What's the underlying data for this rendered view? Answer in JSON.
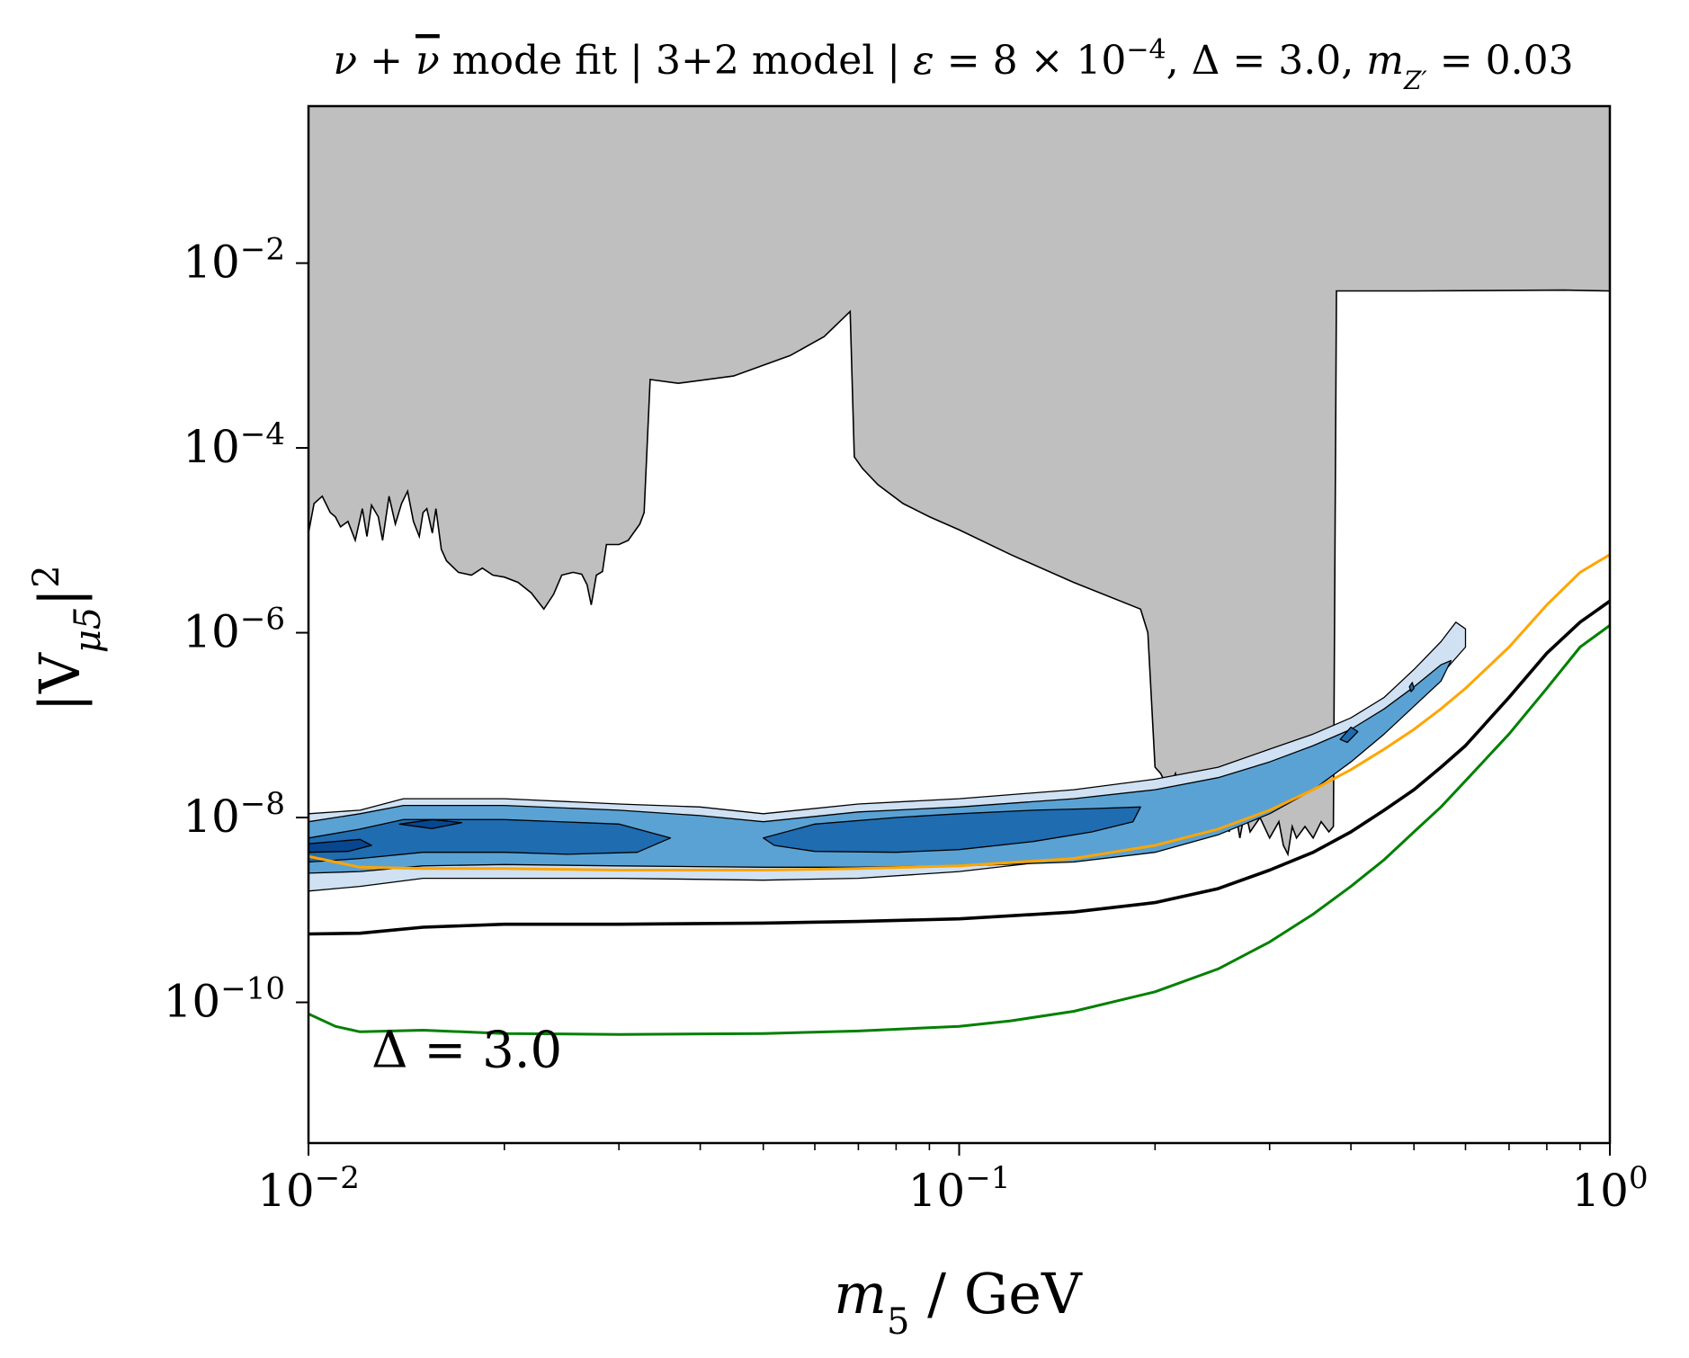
{
  "chart_data": {
    "type": "area",
    "title_parts": {
      "nu": "ν",
      "plus": " + ",
      "nubar": "ν",
      "mode": " mode fit | 3+2 model | ",
      "eps": "ε",
      "eps_val": " = 8 × 10",
      "eps_exp": "−4",
      "delta": ", Δ = 3.0, ",
      "m": "m",
      "m_sub": "Z′",
      "m_val": " = 0.03"
    },
    "xlabel": {
      "m": "m",
      "sub": "5",
      "rest": " / GeV"
    },
    "ylabel": {
      "open": "|V",
      "sub": "μ5",
      "close": "|",
      "sup": "2"
    },
    "xscale": "log",
    "yscale": "log",
    "xlim": [
      0.01,
      1.0
    ],
    "ylim": [
      3e-12,
      0.5
    ],
    "x_ticks": [
      {
        "value": 0.01,
        "base": "10",
        "exp": "−2"
      },
      {
        "value": 0.1,
        "base": "10",
        "exp": "−1"
      },
      {
        "value": 1.0,
        "base": "10",
        "exp": "0"
      }
    ],
    "y_ticks": [
      {
        "value": 1e-10,
        "base": "10",
        "exp": "−10"
      },
      {
        "value": 1e-08,
        "base": "10",
        "exp": "−8"
      },
      {
        "value": 1e-06,
        "base": "10",
        "exp": "−6"
      },
      {
        "value": 0.0001,
        "base": "10",
        "exp": "−4"
      },
      {
        "value": 0.01,
        "base": "10",
        "exp": "−2"
      }
    ],
    "annotation": {
      "text": "Δ = 3.0",
      "x": 0.0125,
      "y": 2e-11
    },
    "colors": {
      "excluded_fill": "#bfbfbf",
      "orange": "#ffa500",
      "black": "#000000",
      "green": "#008000",
      "contour_light": "#cfe1f2",
      "contour_mid": "#5aa2d4",
      "contour_dark": "#1f6cb0",
      "contour_darkest": "#08468f"
    },
    "excluded_region_boundary": [
      [
        0.01,
        1.2e-05
      ],
      [
        0.0102,
        2.5e-05
      ],
      [
        0.0105,
        3e-05
      ],
      [
        0.0108,
        2e-05
      ],
      [
        0.011,
        1.8e-05
      ],
      [
        0.0112,
        1.4e-05
      ],
      [
        0.0115,
        1.6e-05
      ],
      [
        0.0118,
        1e-05
      ],
      [
        0.0121,
        2.2e-05
      ],
      [
        0.0123,
        1.1e-05
      ],
      [
        0.0125,
        2.4e-05
      ],
      [
        0.0128,
        1.8e-05
      ],
      [
        0.013,
        1e-05
      ],
      [
        0.0133,
        3e-05
      ],
      [
        0.0136,
        1.5e-05
      ],
      [
        0.0139,
        2.5e-05
      ],
      [
        0.0142,
        3.4e-05
      ],
      [
        0.0145,
        1.6e-05
      ],
      [
        0.0148,
        1.1e-05
      ],
      [
        0.015,
        2e-05
      ],
      [
        0.0152,
        2.2e-05
      ],
      [
        0.0155,
        1.2e-05
      ],
      [
        0.0157,
        2.2e-05
      ],
      [
        0.016,
        8e-06
      ],
      [
        0.0163,
        6e-06
      ],
      [
        0.017,
        4.5e-06
      ],
      [
        0.0178,
        4.2e-06
      ],
      [
        0.0185,
        5e-06
      ],
      [
        0.0192,
        4.2e-06
      ],
      [
        0.02,
        4e-06
      ],
      [
        0.021,
        3.5e-06
      ],
      [
        0.022,
        2.7e-06
      ],
      [
        0.023,
        1.8e-06
      ],
      [
        0.0238,
        2.6e-06
      ],
      [
        0.0245,
        4.2e-06
      ],
      [
        0.0255,
        4.5e-06
      ],
      [
        0.0263,
        4.3e-06
      ],
      [
        0.0268,
        3.3e-06
      ],
      [
        0.0272,
        2e-06
      ],
      [
        0.0277,
        4.2e-06
      ],
      [
        0.0283,
        4.6e-06
      ],
      [
        0.0287,
        9e-06
      ],
      [
        0.03,
        9e-06
      ],
      [
        0.031,
        1e-05
      ],
      [
        0.0323,
        1.5e-05
      ],
      [
        0.0328,
        2e-05
      ],
      [
        0.0335,
        0.00055
      ],
      [
        0.037,
        0.0005
      ],
      [
        0.045,
        0.0006
      ],
      [
        0.055,
        0.001
      ],
      [
        0.062,
        0.0016
      ],
      [
        0.068,
        0.003
      ],
      [
        0.069,
        8e-05
      ],
      [
        0.071,
        6e-05
      ],
      [
        0.075,
        4e-05
      ],
      [
        0.082,
        2.5e-05
      ],
      [
        0.09,
        1.8e-05
      ],
      [
        0.1,
        1.3e-05
      ],
      [
        0.12,
        7e-06
      ],
      [
        0.15,
        3.5e-06
      ],
      [
        0.19,
        1.8e-06
      ],
      [
        0.195,
        1e-06
      ],
      [
        0.2,
        3.5e-08
      ],
      [
        0.204,
        3e-08
      ],
      [
        0.21,
        2e-08
      ],
      [
        0.215,
        3e-08
      ],
      [
        0.22,
        1.5e-08
      ],
      [
        0.225,
        2.5e-08
      ],
      [
        0.23,
        1e-08
      ],
      [
        0.235,
        2e-08
      ],
      [
        0.24,
        6e-09
      ],
      [
        0.245,
        2e-08
      ],
      [
        0.25,
        8e-09
      ],
      [
        0.255,
        1.5e-08
      ],
      [
        0.26,
        7e-09
      ],
      [
        0.265,
        1.3e-08
      ],
      [
        0.27,
        6e-09
      ],
      [
        0.275,
        1.2e-08
      ],
      [
        0.28,
        7e-09
      ],
      [
        0.29,
        1e-08
      ],
      [
        0.3,
        6e-09
      ],
      [
        0.31,
        9e-09
      ],
      [
        0.315,
        5e-09
      ],
      [
        0.32,
        4e-09
      ],
      [
        0.325,
        8e-09
      ],
      [
        0.33,
        6e-09
      ],
      [
        0.34,
        8e-09
      ],
      [
        0.35,
        6e-09
      ],
      [
        0.36,
        9e-09
      ],
      [
        0.37,
        7e-09
      ],
      [
        0.376,
        8e-09
      ],
      [
        0.38,
        0.005
      ],
      [
        0.5,
        0.005
      ],
      [
        0.85,
        0.0051
      ],
      [
        1.0,
        0.005
      ]
    ],
    "series": [
      {
        "color_key": "orange",
        "points": [
          [
            0.01,
            3.8e-09
          ],
          [
            0.012,
            2.9e-09
          ],
          [
            0.015,
            2.8e-09
          ],
          [
            0.02,
            2.8e-09
          ],
          [
            0.03,
            2.7e-09
          ],
          [
            0.05,
            2.7e-09
          ],
          [
            0.07,
            2.8e-09
          ],
          [
            0.1,
            3e-09
          ],
          [
            0.15,
            3.6e-09
          ],
          [
            0.2,
            5e-09
          ],
          [
            0.25,
            7.5e-09
          ],
          [
            0.3,
            1.2e-08
          ],
          [
            0.35,
            2e-08
          ],
          [
            0.4,
            3.3e-08
          ],
          [
            0.45,
            5.5e-08
          ],
          [
            0.5,
            9e-08
          ],
          [
            0.55,
            1.5e-07
          ],
          [
            0.6,
            2.5e-07
          ],
          [
            0.7,
            7e-07
          ],
          [
            0.8,
            2e-06
          ],
          [
            0.9,
            4.5e-06
          ],
          [
            1.0,
            7e-06
          ]
        ]
      },
      {
        "color_key": "black",
        "points": [
          [
            0.01,
            5.5e-10
          ],
          [
            0.012,
            5.6e-10
          ],
          [
            0.015,
            6.5e-10
          ],
          [
            0.02,
            7e-10
          ],
          [
            0.03,
            7e-10
          ],
          [
            0.05,
            7.2e-10
          ],
          [
            0.07,
            7.5e-10
          ],
          [
            0.1,
            8e-10
          ],
          [
            0.15,
            9.5e-10
          ],
          [
            0.2,
            1.2e-09
          ],
          [
            0.25,
            1.7e-09
          ],
          [
            0.3,
            2.7e-09
          ],
          [
            0.35,
            4.2e-09
          ],
          [
            0.4,
            7e-09
          ],
          [
            0.45,
            1.2e-08
          ],
          [
            0.5,
            2e-08
          ],
          [
            0.55,
            3.5e-08
          ],
          [
            0.6,
            6e-08
          ],
          [
            0.7,
            2e-07
          ],
          [
            0.8,
            6e-07
          ],
          [
            0.9,
            1.3e-06
          ],
          [
            1.0,
            2.2e-06
          ]
        ]
      },
      {
        "color_key": "green",
        "points": [
          [
            0.01,
            7.5e-11
          ],
          [
            0.011,
            5.5e-11
          ],
          [
            0.012,
            4.8e-11
          ],
          [
            0.015,
            5e-11
          ],
          [
            0.02,
            4.6e-11
          ],
          [
            0.03,
            4.5e-11
          ],
          [
            0.05,
            4.6e-11
          ],
          [
            0.07,
            4.9e-11
          ],
          [
            0.1,
            5.5e-11
          ],
          [
            0.12,
            6.3e-11
          ],
          [
            0.15,
            8e-11
          ],
          [
            0.2,
            1.3e-10
          ],
          [
            0.25,
            2.3e-10
          ],
          [
            0.3,
            4.5e-10
          ],
          [
            0.35,
            9e-10
          ],
          [
            0.4,
            1.8e-09
          ],
          [
            0.45,
            3.5e-09
          ],
          [
            0.5,
            7e-09
          ],
          [
            0.55,
            1.3e-08
          ],
          [
            0.6,
            2.5e-08
          ],
          [
            0.7,
            8e-08
          ],
          [
            0.8,
            2.5e-07
          ],
          [
            0.9,
            7e-07
          ],
          [
            1.0,
            1.2e-06
          ]
        ]
      }
    ],
    "contours": [
      {
        "level": 1,
        "color_key": "contour_light",
        "points": [
          [
            0.01,
            1.1e-08
          ],
          [
            0.012,
            1.2e-08
          ],
          [
            0.014,
            1.6e-08
          ],
          [
            0.02,
            1.6e-08
          ],
          [
            0.03,
            1.4e-08
          ],
          [
            0.04,
            1.3e-08
          ],
          [
            0.05,
            1.1e-08
          ],
          [
            0.07,
            1.4e-08
          ],
          [
            0.1,
            1.6e-08
          ],
          [
            0.15,
            2e-08
          ],
          [
            0.2,
            2.6e-08
          ],
          [
            0.25,
            3.5e-08
          ],
          [
            0.3,
            5.5e-08
          ],
          [
            0.35,
            8e-08
          ],
          [
            0.4,
            1.2e-07
          ],
          [
            0.45,
            2e-07
          ],
          [
            0.5,
            4e-07
          ],
          [
            0.55,
            8e-07
          ],
          [
            0.58,
            1.3e-06
          ],
          [
            0.6,
            1.1e-06
          ],
          [
            0.6,
            7e-07
          ],
          [
            0.55,
            3.5e-07
          ],
          [
            0.5,
            1.7e-07
          ],
          [
            0.45,
            9e-08
          ],
          [
            0.4,
            4.5e-08
          ],
          [
            0.35,
            2.4e-08
          ],
          [
            0.3,
            1.3e-08
          ],
          [
            0.25,
            7.5e-09
          ],
          [
            0.2,
            4.8e-09
          ],
          [
            0.15,
            3.6e-09
          ],
          [
            0.1,
            2.6e-09
          ],
          [
            0.07,
            2.2e-09
          ],
          [
            0.05,
            2.1e-09
          ],
          [
            0.03,
            2.2e-09
          ],
          [
            0.02,
            2.2e-09
          ],
          [
            0.015,
            2.2e-09
          ],
          [
            0.012,
            1.8e-09
          ],
          [
            0.01,
            1.6e-09
          ]
        ]
      },
      {
        "level": 2,
        "color_key": "contour_mid",
        "points": [
          [
            0.01,
            9e-09
          ],
          [
            0.012,
            1.1e-08
          ],
          [
            0.014,
            1.35e-08
          ],
          [
            0.02,
            1.35e-08
          ],
          [
            0.03,
            1.2e-08
          ],
          [
            0.04,
            1.05e-08
          ],
          [
            0.05,
            9e-09
          ],
          [
            0.07,
            1.15e-08
          ],
          [
            0.1,
            1.3e-08
          ],
          [
            0.15,
            1.6e-08
          ],
          [
            0.2,
            2e-08
          ],
          [
            0.25,
            2.7e-08
          ],
          [
            0.3,
            4e-08
          ],
          [
            0.35,
            6e-08
          ],
          [
            0.4,
            9e-08
          ],
          [
            0.45,
            1.5e-07
          ],
          [
            0.5,
            2.6e-07
          ],
          [
            0.55,
            4.5e-07
          ],
          [
            0.57,
            5e-07
          ],
          [
            0.55,
            3e-07
          ],
          [
            0.5,
            1.6e-07
          ],
          [
            0.45,
            8e-08
          ],
          [
            0.4,
            4e-08
          ],
          [
            0.35,
            2e-08
          ],
          [
            0.3,
            1.1e-08
          ],
          [
            0.25,
            6.5e-09
          ],
          [
            0.2,
            4.2e-09
          ],
          [
            0.15,
            3.3e-09
          ],
          [
            0.1,
            3e-09
          ],
          [
            0.07,
            2.9e-09
          ],
          [
            0.05,
            2.9e-09
          ],
          [
            0.03,
            3e-09
          ],
          [
            0.02,
            3.1e-09
          ],
          [
            0.015,
            3e-09
          ],
          [
            0.012,
            2.6e-09
          ],
          [
            0.01,
            2.5e-09
          ]
        ]
      },
      {
        "level": 3,
        "color_key": "contour_dark",
        "points": [
          [
            0.01,
            6e-09
          ],
          [
            0.012,
            7.5e-09
          ],
          [
            0.014,
            9.5e-09
          ],
          [
            0.02,
            9.5e-09
          ],
          [
            0.03,
            8.5e-09
          ],
          [
            0.036,
            6e-09
          ],
          [
            0.032,
            4.2e-09
          ],
          [
            0.025,
            4e-09
          ],
          [
            0.02,
            4.2e-09
          ],
          [
            0.015,
            4.2e-09
          ],
          [
            0.012,
            3.6e-09
          ],
          [
            0.01,
            3.3e-09
          ]
        ]
      },
      {
        "level": 3,
        "color_key": "contour_dark",
        "points": [
          [
            0.05,
            6e-09
          ],
          [
            0.06,
            8.5e-09
          ],
          [
            0.08,
            1e-08
          ],
          [
            0.1,
            1.1e-08
          ],
          [
            0.13,
            1.2e-08
          ],
          [
            0.16,
            1.25e-08
          ],
          [
            0.19,
            1.3e-08
          ],
          [
            0.185,
            9e-09
          ],
          [
            0.16,
            7e-09
          ],
          [
            0.13,
            5.5e-09
          ],
          [
            0.1,
            4.5e-09
          ],
          [
            0.08,
            4.2e-09
          ],
          [
            0.06,
            4.3e-09
          ],
          [
            0.052,
            5e-09
          ]
        ]
      },
      {
        "level": 3,
        "color_key": "contour_dark",
        "points": [
          [
            0.385,
            7e-08
          ],
          [
            0.4,
            9.5e-08
          ],
          [
            0.41,
            8.5e-08
          ],
          [
            0.395,
            6.5e-08
          ]
        ]
      },
      {
        "level": 4,
        "color_key": "contour_darkest",
        "points": [
          [
            0.01,
            5.2e-09
          ],
          [
            0.012,
            5.8e-09
          ],
          [
            0.0125,
            5e-09
          ],
          [
            0.0115,
            4.3e-09
          ],
          [
            0.01,
            4.2e-09
          ]
        ]
      },
      {
        "level": 4,
        "color_key": "contour_darkest",
        "points": [
          [
            0.0138,
            8.5e-09
          ],
          [
            0.0155,
            9.5e-09
          ],
          [
            0.0172,
            8.8e-09
          ],
          [
            0.0155,
            7.6e-09
          ]
        ]
      },
      {
        "level": 3,
        "color_key": "contour_dark",
        "points": [
          [
            0.492,
            2.6e-07
          ],
          [
            0.497,
            2.9e-07
          ],
          [
            0.5,
            2.5e-07
          ],
          [
            0.495,
            2.3e-07
          ]
        ]
      }
    ]
  }
}
